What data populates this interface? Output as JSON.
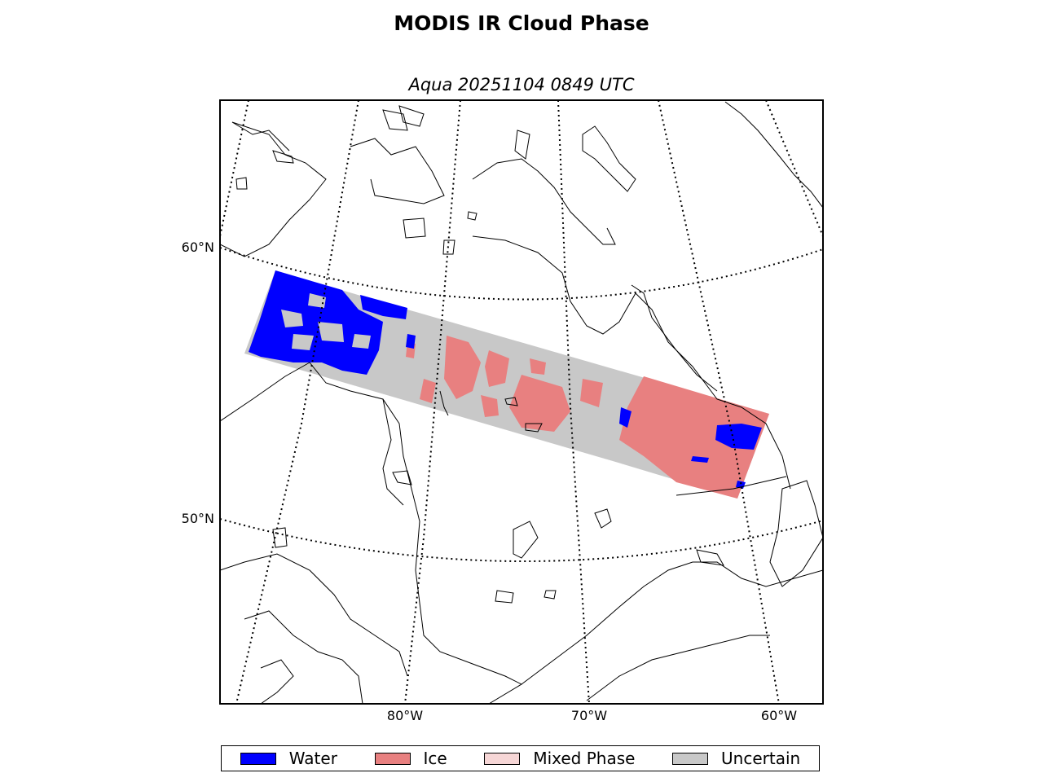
{
  "figure": {
    "title": "MODIS IR Cloud Phase",
    "subtitle": "Aqua 20251104 0849 UTC"
  },
  "axes": {
    "lat_labels": [
      "60°N",
      "50°N"
    ],
    "lon_labels": [
      "80°W",
      "70°W",
      "60°W"
    ]
  },
  "legend": [
    {
      "label": "Water",
      "color": "#0000ff"
    },
    {
      "label": "Ice",
      "color": "#e88080"
    },
    {
      "label": "Mixed Phase",
      "color": "#f6d6d6"
    },
    {
      "label": "Uncertain",
      "color": "#c8c8c8"
    }
  ],
  "colors": {
    "water": "#0000ff",
    "ice": "#e88080",
    "uncertain": "#c8c8c8",
    "coast": "#000000"
  }
}
